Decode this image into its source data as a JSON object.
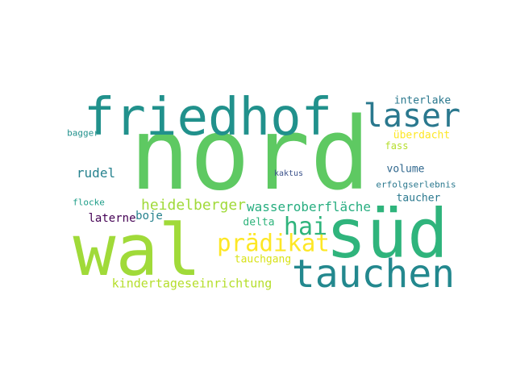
{
  "wordcloud": {
    "words": [
      {
        "text": "nord",
        "color": "#5ec962"
      },
      {
        "text": "friedhof",
        "color": "#21918c"
      },
      {
        "text": "wal",
        "color": "#a0da39"
      },
      {
        "text": "süd",
        "color": "#2fb47c"
      },
      {
        "text": "laser",
        "color": "#2a788e"
      },
      {
        "text": "tauchen",
        "color": "#23888e"
      },
      {
        "text": "hai",
        "color": "#2fb47c"
      },
      {
        "text": "prädikat",
        "color": "#fde725"
      },
      {
        "text": "heidelberger",
        "color": "#a0da39"
      },
      {
        "text": "wasseroberfläche",
        "color": "#28ae80"
      },
      {
        "text": "kindertageseinrichtung",
        "color": "#b5de2b"
      },
      {
        "text": "tauchgang",
        "color": "#d8e219"
      },
      {
        "text": "rudel",
        "color": "#26828e"
      },
      {
        "text": "laterne",
        "color": "#440154"
      },
      {
        "text": "boje",
        "color": "#26828e"
      },
      {
        "text": "delta",
        "color": "#2fb47c"
      },
      {
        "text": "interlake",
        "color": "#2a788e"
      },
      {
        "text": "überdacht",
        "color": "#fde725"
      },
      {
        "text": "fass",
        "color": "#b5de2b"
      },
      {
        "text": "volume",
        "color": "#31688e"
      },
      {
        "text": "erfolgserlebnis",
        "color": "#2a788e"
      },
      {
        "text": "taucher",
        "color": "#2a788e"
      },
      {
        "text": "bagger",
        "color": "#21918c"
      },
      {
        "text": "flocke",
        "color": "#1f9e89"
      },
      {
        "text": "kaktus",
        "color": "#3b528b"
      }
    ]
  }
}
